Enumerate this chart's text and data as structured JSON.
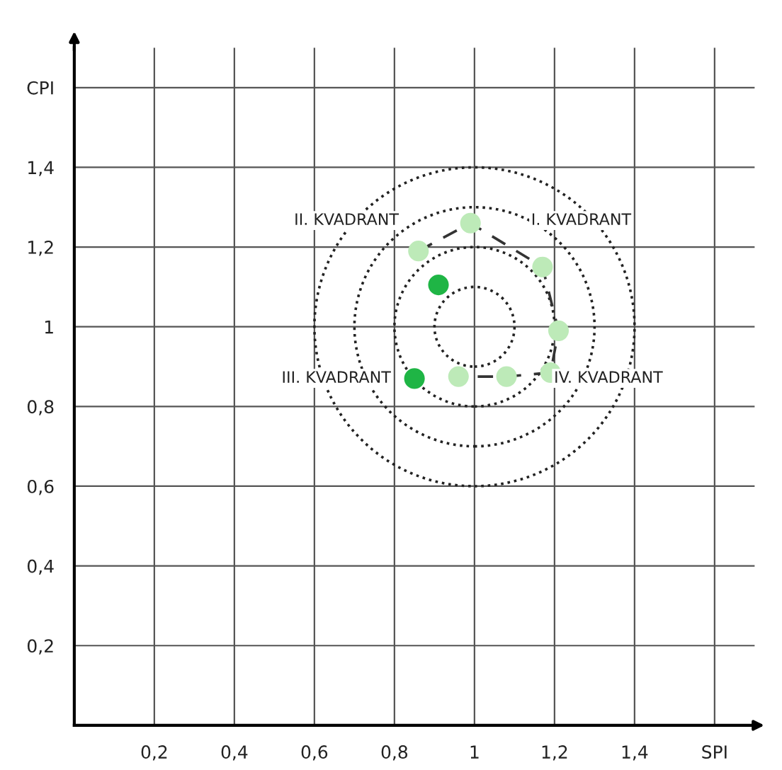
{
  "chart_data": {
    "type": "scatter",
    "xlabel": null,
    "ylabel": null,
    "xlim": [
      0,
      1.7
    ],
    "ylim": [
      0,
      1.7
    ],
    "xticks": [
      {
        "value": 0.2,
        "label": "0,2"
      },
      {
        "value": 0.4,
        "label": "0,4"
      },
      {
        "value": 0.6,
        "label": "0,6"
      },
      {
        "value": 0.8,
        "label": "0,8"
      },
      {
        "value": 1,
        "label": "1"
      },
      {
        "value": 1.2,
        "label": "1,2"
      },
      {
        "value": 1.4,
        "label": "1,4"
      },
      {
        "value": 1.6,
        "label": "SPI"
      }
    ],
    "yticks": [
      {
        "value": 0.2,
        "label": "0,2"
      },
      {
        "value": 0.4,
        "label": "0,4"
      },
      {
        "value": 0.6,
        "label": "0,6"
      },
      {
        "value": 0.8,
        "label": "0,8"
      },
      {
        "value": 1,
        "label": "1"
      },
      {
        "value": 1.2,
        "label": "1,2"
      },
      {
        "value": 1.4,
        "label": "1,4"
      },
      {
        "value": 1.6,
        "label": "CPI"
      }
    ],
    "grid": true,
    "legend": false,
    "series": [
      {
        "type": "line",
        "line_style": "dashed",
        "marker": "none",
        "color": "#333333",
        "x": [
          0.86,
          0.99,
          1.17,
          1.21,
          1.19,
          1.08,
          0.96
        ],
        "values": [
          1.19,
          1.26,
          1.15,
          0.99,
          0.885,
          0.875,
          0.875
        ]
      },
      {
        "type": "scatter",
        "marker": "circle",
        "color": "#bdeab8",
        "x": [
          0.86,
          0.99,
          1.17,
          1.21,
          1.19,
          1.08,
          0.96
        ],
        "values": [
          1.19,
          1.26,
          1.15,
          0.99,
          0.885,
          0.875,
          0.875
        ]
      },
      {
        "type": "scatter",
        "marker": "circle",
        "color": "#1fb545",
        "x": [
          0.91,
          0.85
        ],
        "values": [
          1.105,
          0.87
        ]
      }
    ],
    "annotations": [
      "II. KVADRANT",
      "I. KVADRANT",
      "III. KVADRANT",
      "IV. KVADRANT"
    ]
  }
}
